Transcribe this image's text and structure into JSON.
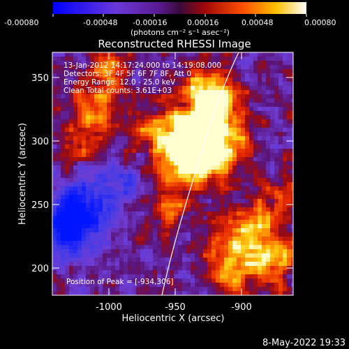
{
  "colorbar": {
    "tick_labels": [
      "-0.00080",
      "-0.00048",
      "-0.00016",
      "0.00016",
      "0.00048",
      "0.00080"
    ],
    "units": "(photons cm⁻² s⁻¹ asec⁻²)",
    "colors": [
      "#0000ff",
      "#3a1ea8",
      "#6e2fd0",
      "#4a0a5a",
      "#a01010",
      "#ff4000",
      "#ffb000",
      "#ffffff"
    ]
  },
  "plot": {
    "title": "Reconstructed RHESSI Image",
    "xlabel": "Heliocentric X (arcsec)",
    "ylabel": "Heliocentric Y (arcsec)",
    "x_ticks": [
      "-1000",
      "-950",
      "-900"
    ],
    "y_ticks": [
      "350",
      "300",
      "250",
      "200"
    ],
    "info_lines": [
      "13-Jan-2012 14:17:24.000 to 14:19:08.000",
      "Detectors: 3F 4F 5F 6F 7F 8F, Att 0",
      "Energy Range: 12.0 - 25.0 keV",
      "Clean     Total counts: 3.61E+03"
    ],
    "peak_text": "Position of Peak = [-934,306]"
  },
  "footer": {
    "date": "8-May-2022 19:33"
  }
}
